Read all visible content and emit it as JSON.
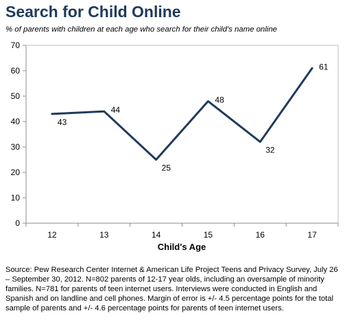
{
  "header": {
    "title": "Search for Child Online",
    "subtitle": "% of parents with children at each age who search for their child's name online"
  },
  "chart_data": {
    "type": "line",
    "title": "Search for Child Online",
    "subtitle": "% of parents with children at each age who search for their child's name online",
    "xlabel": "Child's Age",
    "ylabel": "",
    "categories": [
      "12",
      "13",
      "14",
      "15",
      "16",
      "17"
    ],
    "series": [
      {
        "values": [
          43,
          44,
          25,
          48,
          32,
          61
        ]
      }
    ],
    "ylim": [
      0,
      70
    ],
    "yticks": [
      0,
      10,
      20,
      30,
      40,
      50,
      60,
      70
    ],
    "grid": false,
    "legend": "none",
    "line_color": "#1f3a5c"
  },
  "footer": {
    "source": "Source: Pew Research Center Internet & American Life Project Teens and Privacy Survey, July 26 – September 30, 2012. N=802 parents of 12-17 year olds, including an oversample of minority families. N=781 for parents of teen internet users.  Interviews were conducted in English and Spanish and on landline and cell phones.  Margin of error is +/- 4.5 percentage points for the total sample of parents and +/- 4.6 percentage points for parents of teen internet users."
  }
}
